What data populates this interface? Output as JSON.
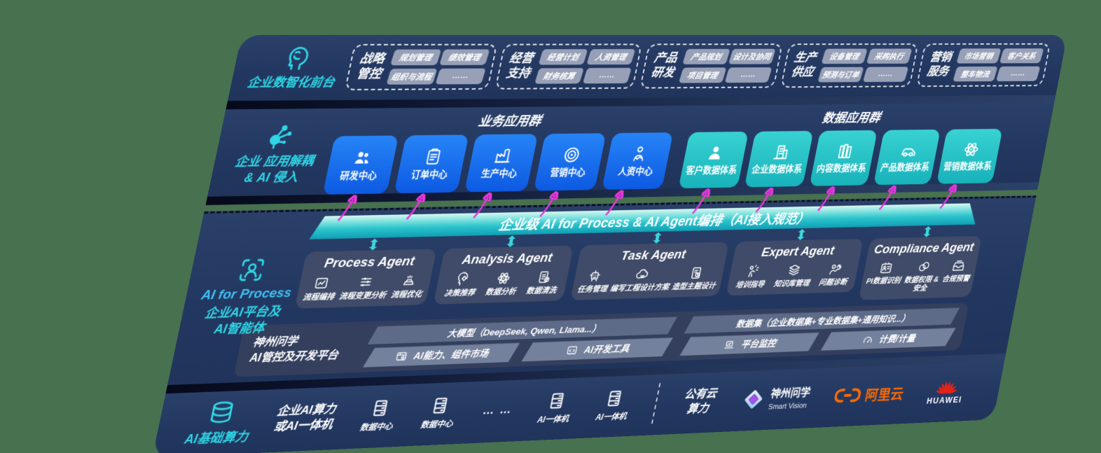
{
  "colors": {
    "page_bg": "#47714F",
    "band_navy": "#24395f",
    "accent_cyan": "#2fd6e6",
    "app_blue": "#1a6ff2",
    "app_teal": "#29c5c8",
    "bus_teal": "#18b0c2",
    "magenta": "#e438dd",
    "agent_card": "#3f4b68",
    "alicloud_orange": "#ff6a00",
    "huawei_red": "#e2231a"
  },
  "front_office": {
    "icon": "brain",
    "label": "企业数智化前台",
    "groups": [
      {
        "label": "战略管控",
        "items": [
          "规划管理",
          "绩效管理",
          "组织与流程",
          "……"
        ]
      },
      {
        "label": "经营支持",
        "items": [
          "经营计划",
          "人资管理",
          "财务核算",
          "……"
        ]
      },
      {
        "label": "产品研发",
        "items": [
          "产品规划",
          "设计及协同",
          "项目管理",
          "……"
        ]
      },
      {
        "label": "生产供应",
        "items": [
          "设备管理",
          "采购执行",
          "预测与订单",
          "……"
        ]
      },
      {
        "label": "营销服务",
        "items": [
          "市场营销",
          "客户关系",
          "整车物流",
          "……"
        ]
      }
    ]
  },
  "app_layer": {
    "icon": "molecule",
    "label_line1": "企业 应用解耦",
    "label_line2": "& AI 侵入",
    "business_group": {
      "title": "业务应用群",
      "boxes": [
        {
          "label": "研发中心",
          "icon": "users"
        },
        {
          "label": "订单中心",
          "icon": "clipboard"
        },
        {
          "label": "生产中心",
          "icon": "factory"
        },
        {
          "label": "营销中心",
          "icon": "target"
        },
        {
          "label": "人资中心",
          "icon": "people-chart"
        }
      ]
    },
    "data_group": {
      "title": "数据应用群",
      "boxes": [
        {
          "label": "客户数据体系",
          "icon": "person"
        },
        {
          "label": "企业数据体系",
          "icon": "building"
        },
        {
          "label": "内容数据体系",
          "icon": "books"
        },
        {
          "label": "产品数据体系",
          "icon": "car"
        },
        {
          "label": "营销数据体系",
          "icon": "atom"
        }
      ]
    }
  },
  "ai_layer": {
    "icon": "person-scan",
    "label_en": "AI for Process",
    "label_line1": "企业AI平台及",
    "label_line2": "AI智能体",
    "bus_bar": "企业级 AI for Process & AI Agent编排（AI接入规范）",
    "agents": [
      {
        "title": "Process Agent",
        "items": [
          {
            "label": "流程编排",
            "icon": "chart-box"
          },
          {
            "label": "流程变更分析",
            "icon": "sliders"
          },
          {
            "label": "流程优化",
            "icon": "stack"
          }
        ]
      },
      {
        "title": "Analysis Agent",
        "items": [
          {
            "label": "决策推荐",
            "icon": "head-gear"
          },
          {
            "label": "数据分析",
            "icon": "atom"
          },
          {
            "label": "数据清洗",
            "icon": "doc"
          }
        ]
      },
      {
        "title": "Task Agent",
        "items": [
          {
            "label": "任务管理",
            "icon": "robot"
          },
          {
            "label": "编写工程设计方案",
            "icon": "cloud"
          },
          {
            "label": "造型主题设计",
            "icon": "card-check"
          }
        ]
      },
      {
        "title": "Expert Agent",
        "items": [
          {
            "label": "培训指导",
            "icon": "training"
          },
          {
            "label": "知识库管理",
            "icon": "layers"
          },
          {
            "label": "问题诊断",
            "icon": "diagnose"
          }
        ]
      },
      {
        "title": "Compliance Agent",
        "items": [
          {
            "label": "PI数据识别",
            "icon": "id-card"
          },
          {
            "label": "数据权限 & 安全",
            "icon": "link"
          },
          {
            "label": "合规预警",
            "icon": "mail"
          }
        ]
      }
    ],
    "platform": {
      "name_line1": "神州问学",
      "name_line2": "AI管控及开发平台",
      "model_bar": "大模型（DeepSeek, Qwen, Llama...）",
      "cells_a": [
        {
          "label": "AI能力、组件市场",
          "icon": "market"
        },
        {
          "label": "AI开发工具",
          "icon": "devtool"
        }
      ],
      "dataset_bar": "数据集（企业数据集+专业数据集+通用知识...）",
      "cells_b": [
        {
          "label": "平台监控",
          "icon": "monitor"
        },
        {
          "label": "计费/计量",
          "icon": "gauge"
        }
      ]
    }
  },
  "compute_layer": {
    "icon": "database",
    "label": "AI基础算力",
    "enterprise_line1": "企业AI算力",
    "enterprise_line2": "或AI一体机",
    "servers": [
      {
        "label": "数据中心",
        "icon": "server"
      },
      {
        "label": "数据中心",
        "icon": "server"
      },
      {
        "label": "AI一体机",
        "icon": "server"
      },
      {
        "label": "AI一体机",
        "icon": "server"
      }
    ],
    "ellipsis": "…  …",
    "public_cloud_line1": "公有云",
    "public_cloud_line2": "算力",
    "logos": {
      "smartvision_cn": "神州问学",
      "smartvision_en": "Smart Vision",
      "alicloud": "阿里云",
      "huawei": "HUAWEI"
    }
  }
}
